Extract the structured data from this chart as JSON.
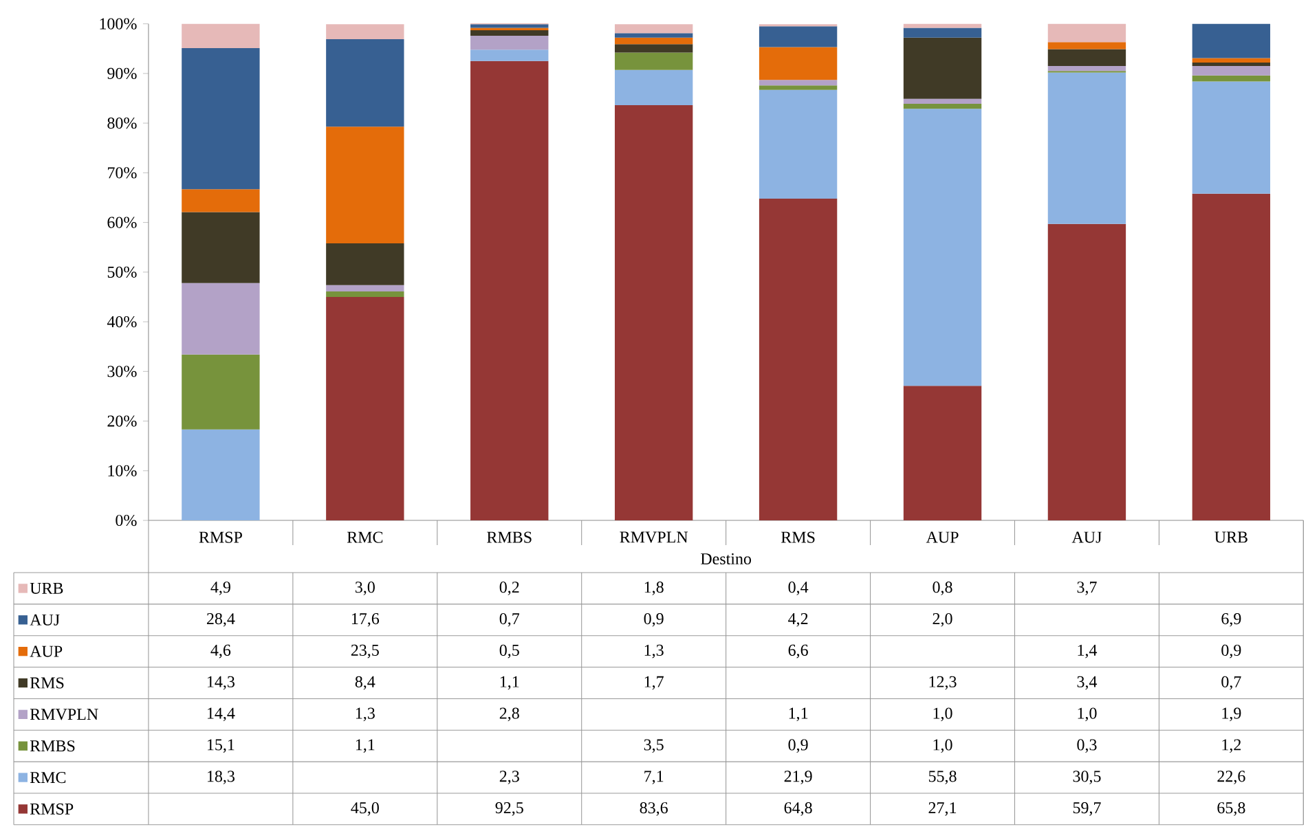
{
  "chart_data": {
    "type": "bar",
    "stacked": true,
    "xlabel": "Destino",
    "categories": [
      "RMSP",
      "RMC",
      "RMBS",
      "RMVPLN",
      "RMS",
      "AUP",
      "AUJ",
      "URB"
    ],
    "ylim": [
      0,
      100
    ],
    "yticks": [
      {
        "value": 0,
        "label": "0%"
      },
      {
        "value": 10,
        "label": "10%"
      },
      {
        "value": 20,
        "label": "20%"
      },
      {
        "value": 30,
        "label": "30%"
      },
      {
        "value": 40,
        "label": "40%"
      },
      {
        "value": 50,
        "label": "50%"
      },
      {
        "value": 60,
        "label": "60%"
      },
      {
        "value": 70,
        "label": "70%"
      },
      {
        "value": 80,
        "label": "80%"
      },
      {
        "value": 90,
        "label": "90%"
      },
      {
        "value": 100,
        "label": "100%"
      }
    ],
    "legend": "bottom",
    "series": [
      {
        "name": "RMSP",
        "color": "#953735",
        "values": [
          null,
          45.0,
          92.5,
          83.6,
          64.8,
          27.1,
          59.7,
          65.8
        ],
        "value_labels": [
          null,
          "45,0",
          "92,5",
          "83,6",
          "64,8",
          "27,1",
          "59,7",
          "65,8"
        ]
      },
      {
        "name": "RMC",
        "color": "#8db3e2",
        "values": [
          18.3,
          null,
          2.3,
          7.1,
          21.9,
          55.8,
          30.5,
          22.6
        ],
        "value_labels": [
          "18,3",
          null,
          "2,3",
          "7,1",
          "21,9",
          "55,8",
          "30,5",
          "22,6"
        ]
      },
      {
        "name": "RMBS",
        "color": "#77933c",
        "values": [
          15.1,
          1.1,
          null,
          3.5,
          0.9,
          1.0,
          0.3,
          1.2
        ],
        "value_labels": [
          "15,1",
          "1,1",
          null,
          "3,5",
          "0,9",
          "1,0",
          "0,3",
          "1,2"
        ]
      },
      {
        "name": "RMVPLN",
        "color": "#b3a2c7",
        "values": [
          14.4,
          1.3,
          2.8,
          null,
          1.1,
          1.0,
          1.0,
          1.9
        ],
        "value_labels": [
          "14,4",
          "1,3",
          "2,8",
          null,
          "1,1",
          "1,0",
          "1,0",
          "1,9"
        ]
      },
      {
        "name": "RMS",
        "color": "#403a26",
        "values": [
          14.3,
          8.4,
          1.1,
          1.7,
          null,
          12.3,
          3.4,
          0.7
        ],
        "value_labels": [
          "14,3",
          "8,4",
          "1,1",
          "1,7",
          null,
          "12,3",
          "3,4",
          "0,7"
        ]
      },
      {
        "name": "AUP",
        "color": "#e46c0a",
        "values": [
          4.6,
          23.5,
          0.5,
          1.3,
          6.6,
          null,
          1.4,
          0.9
        ],
        "value_labels": [
          "4,6",
          "23,5",
          "0,5",
          "1,3",
          "6,6",
          null,
          "1,4",
          "0,9"
        ]
      },
      {
        "name": "AUJ",
        "color": "#376092",
        "values": [
          28.4,
          17.6,
          0.7,
          0.9,
          4.2,
          2.0,
          null,
          6.9
        ],
        "value_labels": [
          "28,4",
          "17,6",
          "0,7",
          "0,9",
          "4,2",
          "2,0",
          null,
          "6,9"
        ]
      },
      {
        "name": "URB",
        "color": "#e6b9b8",
        "values": [
          4.9,
          3.0,
          0.2,
          1.8,
          0.4,
          0.8,
          3.7,
          null
        ],
        "value_labels": [
          "4,9",
          "3,0",
          "0,2",
          "1,8",
          "0,4",
          "0,8",
          "3,7",
          null
        ]
      }
    ]
  }
}
